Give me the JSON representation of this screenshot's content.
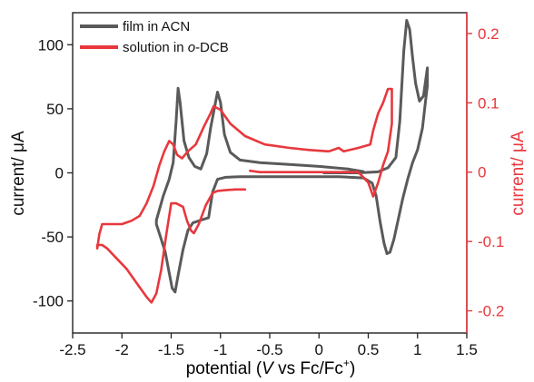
{
  "chart_data": {
    "type": "line",
    "xlabel": {
      "pre": "potential (",
      "ital": "V",
      "mid": " vs Fc/Fc",
      "sup": "+",
      "post": ")"
    },
    "ylabel_left": "current/ μA",
    "ylabel_right": "current/ μA",
    "xlim": [
      -2.5,
      1.5
    ],
    "ylim_left": [
      -125,
      125
    ],
    "ylim_right": [
      -0.232,
      0.23
    ],
    "x_ticks": [
      -2.5,
      -2,
      -1.5,
      -1,
      -0.5,
      0,
      0.5,
      1,
      1.5
    ],
    "x_tick_labels": [
      "-2.5",
      "-2",
      "-1.5",
      "-1",
      "-0.5",
      "0",
      "0.5",
      "1",
      "1.5"
    ],
    "left_ticks": [
      100,
      50,
      0,
      -50,
      -100
    ],
    "left_tick_labels": [
      "100",
      "50",
      "0",
      "-50",
      "-100"
    ],
    "right_ticks": [
      0.2,
      0.1,
      0,
      -0.1,
      -0.2
    ],
    "right_tick_labels": [
      "0.2",
      "0.1",
      "0",
      "-0.1",
      "-0.2"
    ],
    "grid": false,
    "legend_placement": "top-left",
    "series": [
      {
        "name": "film in ACN",
        "axis": "left",
        "color": "#5a5a5a",
        "points": [
          [
            0.05,
            0
          ],
          [
            0.4,
            0
          ],
          [
            0.6,
            0.8
          ],
          [
            0.7,
            4
          ],
          [
            0.78,
            12
          ],
          [
            0.82,
            40
          ],
          [
            0.86,
            95
          ],
          [
            0.89,
            119
          ],
          [
            0.92,
            112
          ],
          [
            0.95,
            90
          ],
          [
            0.98,
            70
          ],
          [
            1.02,
            56
          ],
          [
            1.06,
            60
          ],
          [
            1.1,
            82
          ],
          [
            1.1,
            68
          ],
          [
            1.08,
            55
          ],
          [
            1.05,
            35
          ],
          [
            1.0,
            18
          ],
          [
            0.95,
            8
          ],
          [
            0.9,
            -5
          ],
          [
            0.85,
            -20
          ],
          [
            0.8,
            -38
          ],
          [
            0.76,
            -52
          ],
          [
            0.72,
            -62
          ],
          [
            0.69,
            -63
          ],
          [
            0.66,
            -55
          ],
          [
            0.62,
            -38
          ],
          [
            0.58,
            -18
          ],
          [
            0.54,
            -8
          ],
          [
            0.45,
            -4
          ],
          [
            0.2,
            -3
          ],
          [
            -0.3,
            -3
          ],
          [
            -0.8,
            -3
          ],
          [
            -0.95,
            -3.5
          ],
          [
            -1.03,
            -5
          ],
          [
            -1.08,
            -15
          ],
          [
            -1.12,
            -35
          ],
          [
            -1.2,
            -37
          ],
          [
            -1.28,
            -39
          ],
          [
            -1.33,
            -45
          ],
          [
            -1.38,
            -60
          ],
          [
            -1.43,
            -80
          ],
          [
            -1.46,
            -93
          ],
          [
            -1.49,
            -90
          ],
          [
            -1.52,
            -78
          ],
          [
            -1.56,
            -62
          ],
          [
            -1.6,
            -52
          ],
          [
            -1.65,
            -40
          ],
          [
            -1.65,
            -37
          ],
          [
            -1.58,
            -18
          ],
          [
            -1.52,
            -5
          ],
          [
            -1.48,
            8
          ],
          [
            -1.45,
            40
          ],
          [
            -1.43,
            66
          ],
          [
            -1.41,
            55
          ],
          [
            -1.37,
            25
          ],
          [
            -1.32,
            12
          ],
          [
            -1.26,
            5
          ],
          [
            -1.2,
            3
          ],
          [
            -1.14,
            15
          ],
          [
            -1.1,
            35
          ],
          [
            -1.05,
            55
          ],
          [
            -1.03,
            63
          ],
          [
            -1.0,
            55
          ],
          [
            -0.96,
            30
          ],
          [
            -0.9,
            16
          ],
          [
            -0.8,
            10
          ],
          [
            -0.6,
            8
          ],
          [
            -0.3,
            6.5
          ],
          [
            0.0,
            5
          ],
          [
            0.3,
            3
          ],
          [
            0.45,
            1
          ],
          [
            0.1,
            0
          ]
        ]
      },
      {
        "name": "solution in o-DCB",
        "axis": "right",
        "color": "#e8383d",
        "points": [
          [
            -0.75,
            -0.025
          ],
          [
            -0.85,
            -0.025
          ],
          [
            -0.95,
            -0.026
          ],
          [
            -1.03,
            -0.027
          ],
          [
            -1.08,
            -0.03
          ],
          [
            -1.15,
            -0.048
          ],
          [
            -1.22,
            -0.075
          ],
          [
            -1.27,
            -0.088
          ],
          [
            -1.3,
            -0.084
          ],
          [
            -1.34,
            -0.07
          ],
          [
            -1.38,
            -0.05
          ],
          [
            -1.45,
            -0.045
          ],
          [
            -1.5,
            -0.045
          ],
          [
            -1.55,
            -0.09
          ],
          [
            -1.6,
            -0.14
          ],
          [
            -1.65,
            -0.175
          ],
          [
            -1.7,
            -0.188
          ],
          [
            -1.75,
            -0.18
          ],
          [
            -1.85,
            -0.16
          ],
          [
            -1.95,
            -0.14
          ],
          [
            -2.05,
            -0.125
          ],
          [
            -2.15,
            -0.11
          ],
          [
            -2.2,
            -0.105
          ],
          [
            -2.25,
            -0.105
          ],
          [
            -2.25,
            -0.11
          ],
          [
            -2.23,
            -0.09
          ],
          [
            -2.2,
            -0.075
          ],
          [
            -2.0,
            -0.075
          ],
          [
            -1.9,
            -0.07
          ],
          [
            -1.82,
            -0.063
          ],
          [
            -1.75,
            -0.045
          ],
          [
            -1.68,
            -0.02
          ],
          [
            -1.62,
            0.01
          ],
          [
            -1.57,
            0.03
          ],
          [
            -1.52,
            0.045
          ],
          [
            -1.48,
            0.04
          ],
          [
            -1.44,
            0.025
          ],
          [
            -1.39,
            0.02
          ],
          [
            -1.33,
            0.03
          ],
          [
            -1.25,
            0.04
          ],
          [
            -1.17,
            0.065
          ],
          [
            -1.1,
            0.085
          ],
          [
            -1.07,
            0.095
          ],
          [
            -1.0,
            0.09
          ],
          [
            -0.9,
            0.07
          ],
          [
            -0.75,
            0.052
          ],
          [
            -0.55,
            0.04
          ],
          [
            -0.3,
            0.035
          ],
          [
            -0.1,
            0.032
          ],
          [
            0.1,
            0.03
          ],
          [
            0.2,
            0.035
          ],
          [
            0.25,
            0.03
          ],
          [
            0.4,
            0.035
          ],
          [
            0.52,
            0.04
          ],
          [
            0.55,
            0.06
          ],
          [
            0.6,
            0.085
          ],
          [
            0.65,
            0.1
          ],
          [
            0.7,
            0.12
          ],
          [
            0.74,
            0.12
          ],
          [
            0.74,
            0.07
          ],
          [
            0.7,
            0.03
          ],
          [
            0.65,
            0.01
          ],
          [
            0.6,
            -0.015
          ],
          [
            0.55,
            -0.035
          ],
          [
            0.5,
            -0.015
          ],
          [
            0.4,
            0.0
          ],
          [
            0.2,
            0.0
          ],
          [
            0.0,
            0.0
          ],
          [
            -0.3,
            0.0
          ],
          [
            -0.6,
            0.0
          ],
          [
            -0.7,
            0.002
          ]
        ]
      }
    ]
  }
}
